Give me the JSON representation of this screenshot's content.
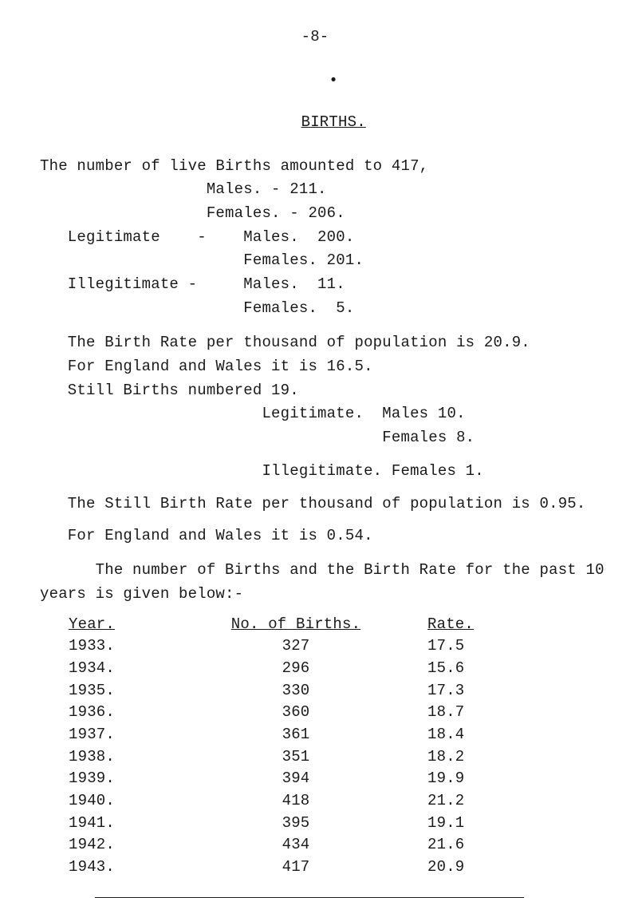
{
  "page_number_line": "-8-",
  "bullet": "•",
  "section_title": "BIRTHS.",
  "intro_line": "The number of live Births amounted to 417,",
  "males_line": "                  Males. - 211.",
  "females_line": "                  Females. - 206.",
  "legit_label": "   Legitimate    -    Males.  200.",
  "legit_females": "                      Females. 201.",
  "illegit_label": "   Illegitimate -     Males.  11.",
  "illegit_females": "                      Females.  5.",
  "birth_rate_line1": "   The Birth Rate per thousand of population is 20.9.",
  "birth_rate_line2": "   For England and Wales it is 16.5.",
  "still_births_line": "   Still Births numbered 19.",
  "legit_rate_line": "                        Legitimate.  Males 10.",
  "legit_rate_line2": "                                     Females 8.",
  "illegit_rate_line": "                        Illegitimate. Females 1.",
  "still_rate_line": "   The Still Birth Rate per thousand of population is 0.95.",
  "england_line": "   For England and Wales it is 0.54.",
  "table_intro1": "      The number of Births and the Birth Rate for the past 10",
  "table_intro2": "years is given below:-",
  "table_head": {
    "c1": "Year.",
    "c2": "No. of Births.",
    "c3": "Rate."
  },
  "rows": [
    {
      "year": "1933.",
      "births": "327",
      "rate": "17.5"
    },
    {
      "year": "1934.",
      "births": "296",
      "rate": "15.6"
    },
    {
      "year": "1935.",
      "births": "330",
      "rate": "17.3"
    },
    {
      "year": "1936.",
      "births": "360",
      "rate": "18.7"
    },
    {
      "year": "1937.",
      "births": "361",
      "rate": "18.4"
    },
    {
      "year": "1938.",
      "births": "351",
      "rate": "18.2"
    },
    {
      "year": "1939.",
      "births": "394",
      "rate": "19.9"
    },
    {
      "year": "1940.",
      "births": "418",
      "rate": "21.2"
    },
    {
      "year": "1941.",
      "births": "395",
      "rate": "19.1"
    },
    {
      "year": "1942.",
      "births": "434",
      "rate": "21.6"
    },
    {
      "year": "1943.",
      "births": "417",
      "rate": "20.9"
    }
  ]
}
